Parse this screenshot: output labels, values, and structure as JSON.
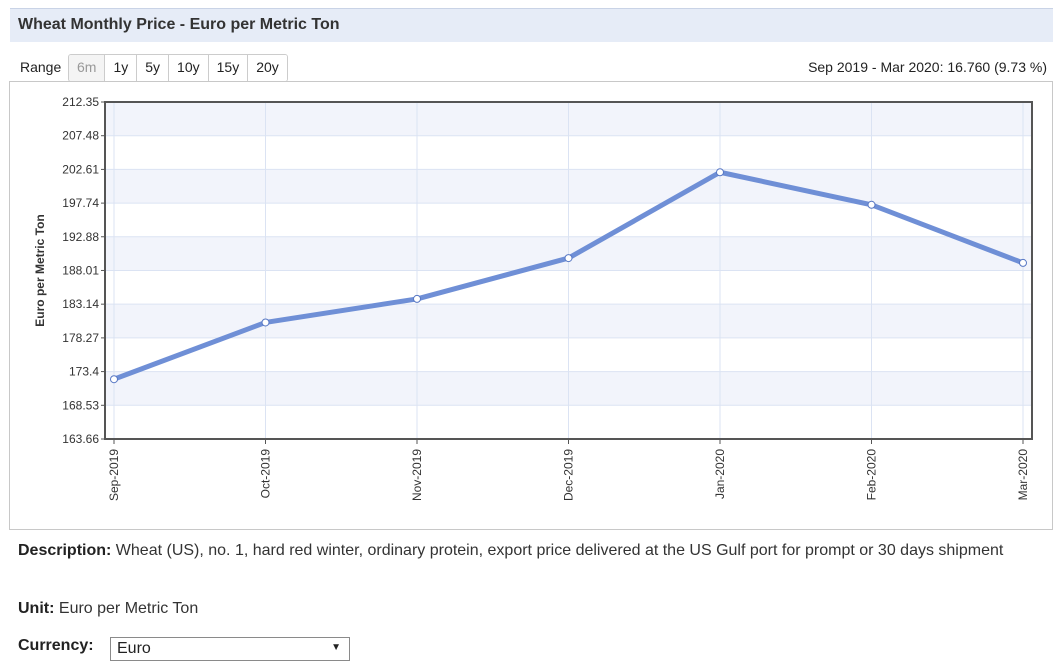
{
  "header": {
    "title": "Wheat Monthly Price - Euro per Metric Ton"
  },
  "range": {
    "label": "Range",
    "options": [
      "6m",
      "1y",
      "5y",
      "10y",
      "15y",
      "20y"
    ],
    "selected": "6m"
  },
  "change_text": "Sep 2019 - Mar 2020: 16.760 (9.73 %)",
  "chart_data": {
    "type": "line",
    "categories": [
      "Sep-2019",
      "Oct-2019",
      "Nov-2019",
      "Dec-2019",
      "Jan-2020",
      "Feb-2020",
      "Mar-2020"
    ],
    "series": [
      {
        "values": [
          172.3,
          180.5,
          183.9,
          189.8,
          202.2,
          197.5,
          189.1
        ]
      }
    ],
    "ylabel": "Euro per Metric Ton",
    "ylim": [
      163.66,
      212.35
    ],
    "yticks": [
      "163.66",
      "168.53",
      "173.4",
      "178.27",
      "183.14",
      "188.01",
      "192.88",
      "197.74",
      "202.61",
      "207.48",
      "212.35"
    ],
    "line_color": "#6f8fd6",
    "band_color": "#f2f4fb",
    "grid": true
  },
  "description": {
    "label": "Description:",
    "text": "Wheat (US), no. 1, hard red winter, ordinary protein, export price delivered at the US Gulf port for prompt or 30 days shipment"
  },
  "unit": {
    "label": "Unit:",
    "text": "Euro per Metric Ton"
  },
  "currency": {
    "label": "Currency:",
    "value": "Euro"
  }
}
